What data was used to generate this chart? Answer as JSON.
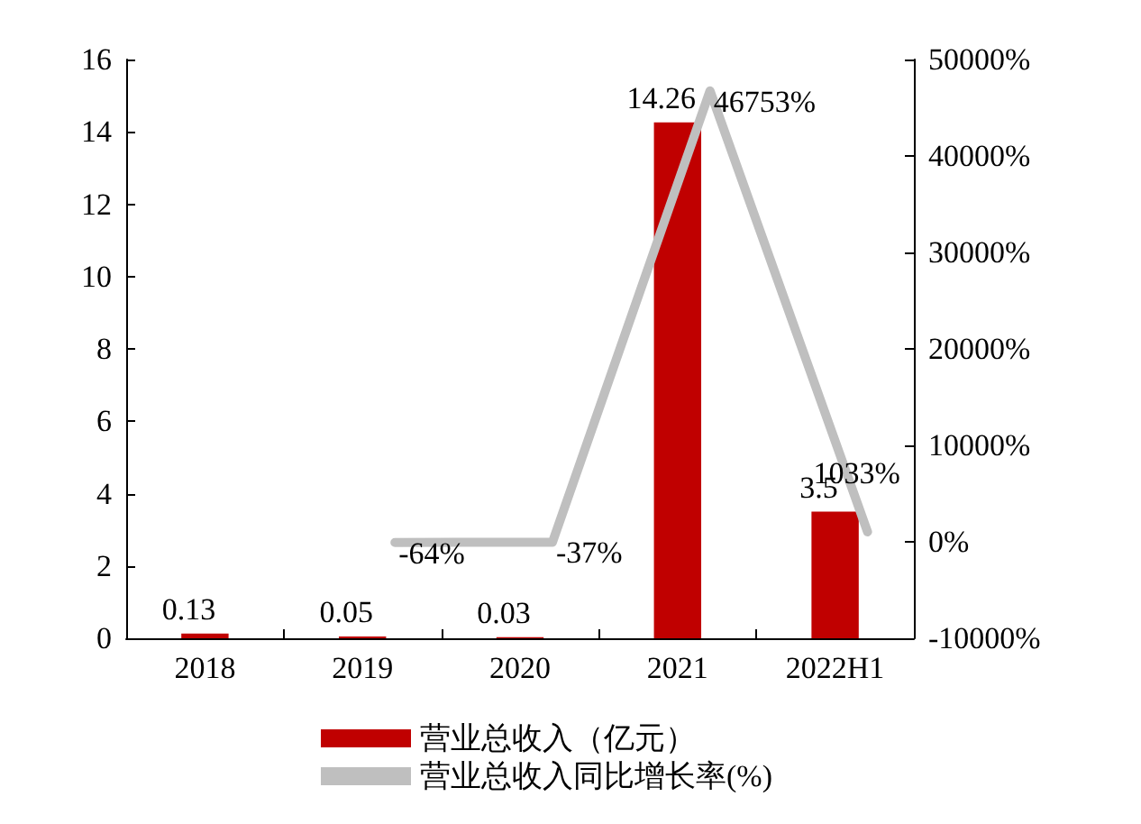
{
  "chart_data": {
    "type": "bar",
    "categories": [
      "2018",
      "2019",
      "2020",
      "2021",
      "2022H1"
    ],
    "series": [
      {
        "name": "营业总收入（亿元）",
        "type": "bar",
        "color": "#c00000",
        "values": [
          0.13,
          0.05,
          0.03,
          14.26,
          3.5
        ],
        "value_labels": [
          "0.13",
          "0.05",
          "0.03",
          "14.26",
          "3.5"
        ]
      },
      {
        "name": "营业总收入同比增长率(%)",
        "type": "line",
        "axis": "y2",
        "color": "#bfbfbf",
        "values": [
          null,
          -64,
          -37,
          46753,
          1033
        ],
        "value_labels": [
          null,
          "-64%",
          "-37%",
          "46753%",
          "1033%"
        ]
      }
    ],
    "ylim": [
      0,
      16
    ],
    "yticks": [
      0,
      2,
      4,
      6,
      8,
      10,
      12,
      14,
      16
    ],
    "y2lim": [
      -10000,
      50000
    ],
    "y2ticks": [
      {
        "value": -10000,
        "label": "-10000%"
      },
      {
        "value": 0,
        "label": "0%"
      },
      {
        "value": 10000,
        "label": "10000%"
      },
      {
        "value": 20000,
        "label": "20000%"
      },
      {
        "value": 30000,
        "label": "30000%"
      },
      {
        "value": 40000,
        "label": "40000%"
      },
      {
        "value": 50000,
        "label": "50000%"
      }
    ],
    "grid": false,
    "legend": "bottom",
    "marker": "none",
    "line_style": "solid"
  }
}
